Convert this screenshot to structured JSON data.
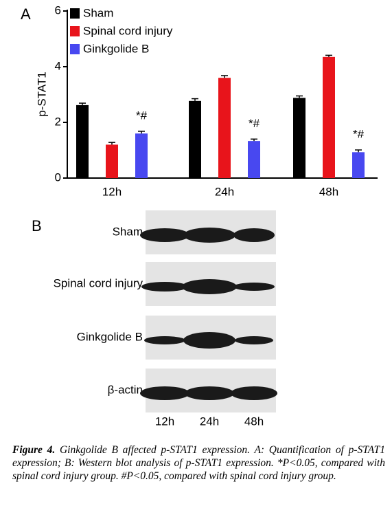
{
  "panel_a_label": "A",
  "chart_data": {
    "type": "bar",
    "y_label": "p-STAT1",
    "categories": [
      "12h",
      "24h",
      "48h"
    ],
    "series": [
      {
        "name": "Sham",
        "color": "#000000",
        "values": [
          2.62,
          2.77,
          2.88
        ],
        "errors": [
          0.07,
          0.08,
          0.07
        ]
      },
      {
        "name": "Spinal cord injury",
        "color": "#e8141b",
        "values": [
          1.2,
          3.6,
          4.35
        ],
        "errors": [
          0.08,
          0.08,
          0.06
        ]
      },
      {
        "name": "Ginkgolide B",
        "color": "#4848f0",
        "values": [
          1.6,
          1.33,
          0.93
        ],
        "errors": [
          0.08,
          0.07,
          0.08
        ]
      }
    ],
    "annotations": [
      "*#",
      "*#",
      "*#"
    ],
    "ylim": [
      0,
      6
    ],
    "yticks": [
      0,
      2,
      4,
      6
    ],
    "legend": "top-left"
  },
  "panel_b_label": "B",
  "blot": {
    "rows": [
      "Sham",
      "Spinal cord injury",
      "Ginkgolide B",
      "β-actin"
    ],
    "lanes": [
      "12h",
      "24h",
      "48h"
    ]
  },
  "caption": {
    "label": "Figure 4.",
    "text": "Ginkgolide B affected p-STAT1 expression. A: Quantification of p-STAT1 expression; B: Western blot analysis of p-STAT1 expression. *P<0.05, compared with spinal cord injury group. #P<0.05, compared with spinal cord injury group."
  }
}
